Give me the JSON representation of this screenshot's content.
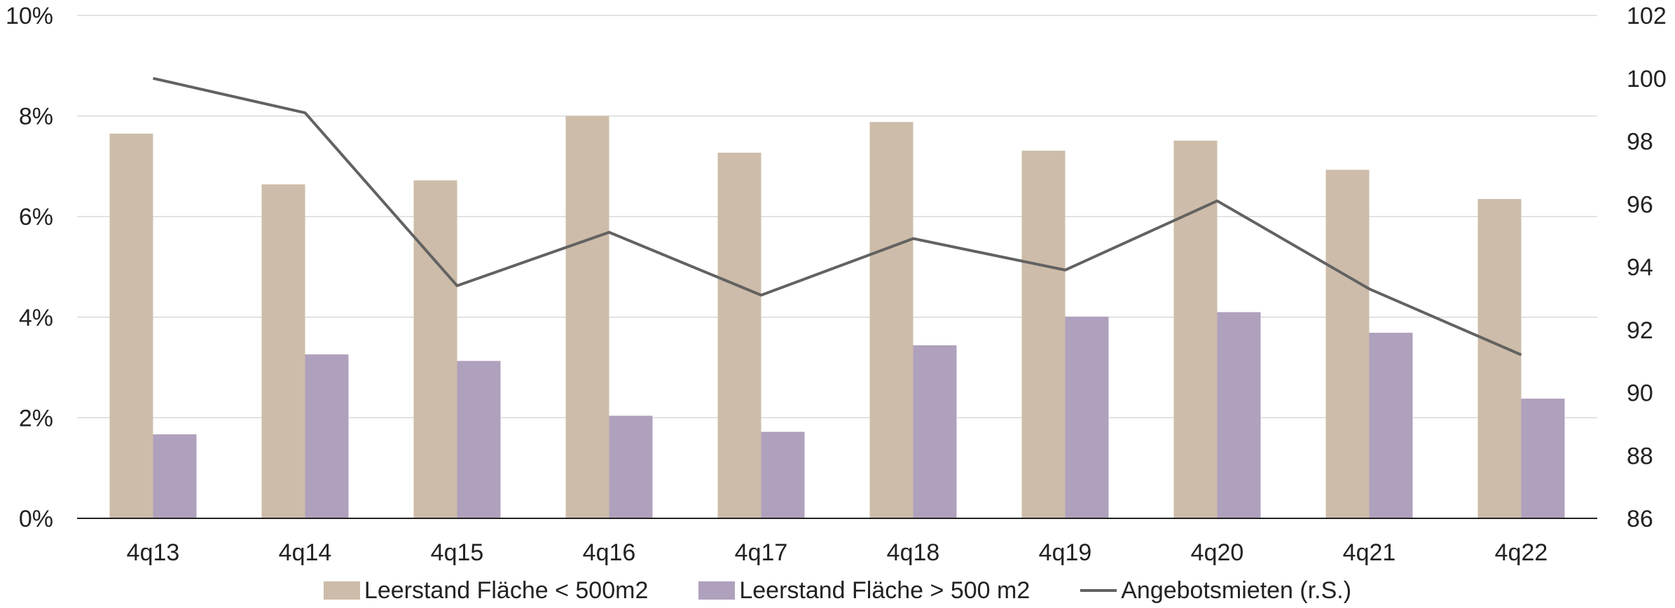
{
  "chart_data": {
    "type": "bar",
    "categories": [
      "4q13",
      "4q14",
      "4q15",
      "4q16",
      "4q17",
      "4q18",
      "4q19",
      "4q20",
      "4q21",
      "4q22"
    ],
    "series": [
      {
        "name": "Leerstand Fläche < 500m2",
        "type": "bar",
        "axis": "left",
        "color": "#cdbca9",
        "values": [
          7.65,
          6.64,
          6.72,
          8.0,
          7.27,
          7.88,
          7.31,
          7.51,
          6.93,
          6.35
        ]
      },
      {
        "name": "Leerstand Fläche > 500 m2",
        "type": "bar",
        "axis": "left",
        "color": "#afa0bd",
        "values": [
          1.67,
          3.26,
          3.13,
          2.04,
          1.72,
          3.44,
          4.01,
          4.1,
          3.69,
          2.38
        ]
      },
      {
        "name": "Angebotsmieten (r.S.)",
        "type": "line",
        "axis": "right",
        "color": "#626262",
        "values": [
          100.0,
          98.9,
          93.4,
          95.1,
          93.1,
          94.9,
          93.9,
          96.1,
          93.3,
          91.2
        ]
      }
    ],
    "y_left": {
      "ylim": [
        0,
        10
      ],
      "ticks": [
        0,
        2,
        4,
        6,
        8,
        10
      ],
      "tick_labels": [
        "0%",
        "2%",
        "4%",
        "6%",
        "8%",
        "10%"
      ]
    },
    "y_right": {
      "ylim": [
        86,
        102
      ],
      "ticks": [
        86,
        88,
        90,
        92,
        94,
        96,
        98,
        100,
        102
      ],
      "tick_labels": [
        "86",
        "88",
        "90",
        "92",
        "94",
        "96",
        "98",
        "100",
        "102"
      ]
    },
    "grid": true,
    "legend_position": "bottom"
  }
}
